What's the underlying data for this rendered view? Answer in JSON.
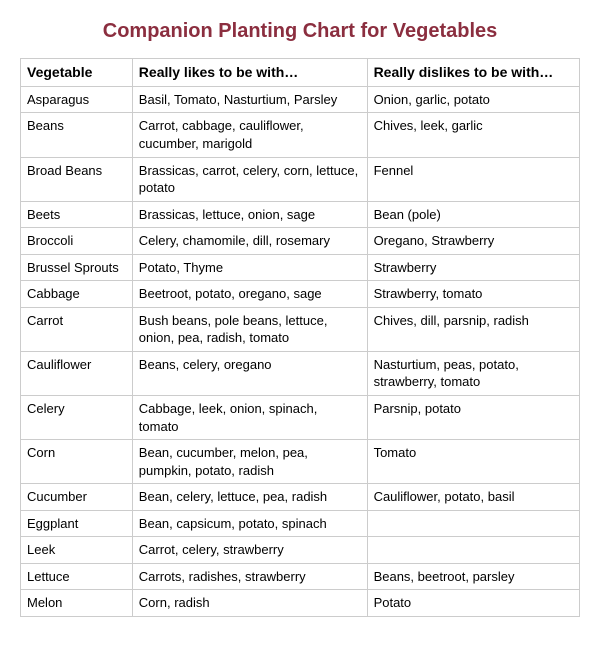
{
  "title": "Companion Planting Chart for Vegetables",
  "title_color": "#8b2e3f",
  "border_color": "#cccccc",
  "background_color": "#ffffff",
  "font_family": "Arial",
  "title_fontsize": 20,
  "body_fontsize": 13,
  "columns": [
    "Vegetable",
    "Really likes to be with…",
    "Really dislikes to be with…"
  ],
  "rows": [
    [
      "Asparagus",
      "Basil, Tomato, Nasturtium, Parsley",
      "Onion, garlic, potato"
    ],
    [
      "Beans",
      "Carrot, cabbage, cauliflower, cucumber, marigold",
      "Chives, leek, garlic"
    ],
    [
      "Broad Beans",
      "Brassicas, carrot, celery, corn, lettuce, potato",
      "Fennel"
    ],
    [
      "Beets",
      "Brassicas, lettuce, onion, sage",
      "Bean (pole)"
    ],
    [
      "Broccoli",
      "Celery, chamomile, dill, rosemary",
      "Oregano, Strawberry"
    ],
    [
      "Brussel Sprouts",
      "Potato, Thyme",
      "Strawberry"
    ],
    [
      "Cabbage",
      "Beetroot, potato, oregano, sage",
      "Strawberry, tomato"
    ],
    [
      "Carrot",
      "Bush beans, pole beans, lettuce, onion, pea, radish, tomato",
      "Chives, dill, parsnip, radish"
    ],
    [
      "Cauliflower",
      "Beans, celery, oregano",
      "Nasturtium, peas, potato, strawberry, tomato"
    ],
    [
      "Celery",
      "Cabbage, leek, onion, spinach, tomato",
      "Parsnip, potato"
    ],
    [
      "Corn",
      "Bean, cucumber, melon, pea, pumpkin, potato, radish",
      "Tomato"
    ],
    [
      "Cucumber",
      "Bean, celery, lettuce, pea, radish",
      "Cauliflower, potato, basil"
    ],
    [
      "Eggplant",
      "Bean, capsicum, potato, spinach",
      ""
    ],
    [
      "Leek",
      "Carrot, celery, strawberry",
      ""
    ],
    [
      "Lettuce",
      "Carrots, radishes, strawberry",
      "Beans, beetroot, parsley"
    ],
    [
      "Melon",
      "Corn, radish",
      "Potato"
    ]
  ]
}
